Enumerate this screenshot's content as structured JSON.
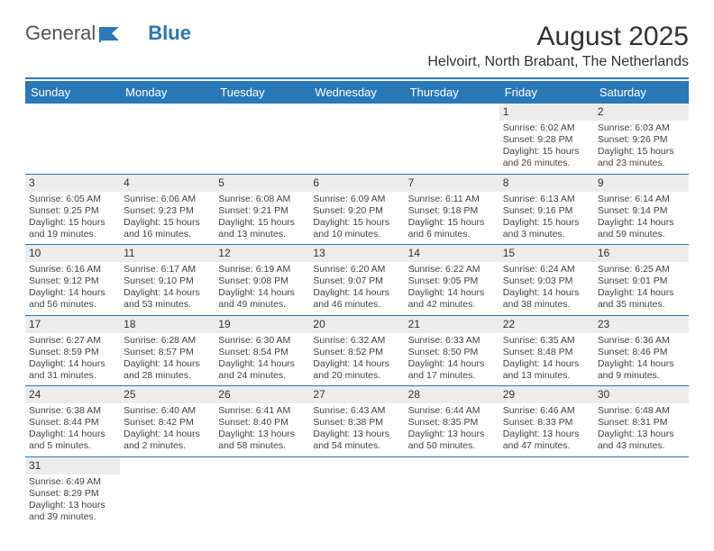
{
  "logo": {
    "text1": "General",
    "text2": "Blue"
  },
  "title": "August 2025",
  "location": "Helvoirt, North Brabant, The Netherlands",
  "colors": {
    "accent": "#2978b8",
    "dayStripe": "#ececec",
    "text": "#444444",
    "bg": "#ffffff"
  },
  "dayHeaders": [
    "Sunday",
    "Monday",
    "Tuesday",
    "Wednesday",
    "Thursday",
    "Friday",
    "Saturday"
  ],
  "weeks": [
    [
      null,
      null,
      null,
      null,
      null,
      {
        "n": "1",
        "sr": "6:02 AM",
        "ss": "9:28 PM",
        "dl": "15 hours and 26 minutes."
      },
      {
        "n": "2",
        "sr": "6:03 AM",
        "ss": "9:26 PM",
        "dl": "15 hours and 23 minutes."
      }
    ],
    [
      {
        "n": "3",
        "sr": "6:05 AM",
        "ss": "9:25 PM",
        "dl": "15 hours and 19 minutes."
      },
      {
        "n": "4",
        "sr": "6:06 AM",
        "ss": "9:23 PM",
        "dl": "15 hours and 16 minutes."
      },
      {
        "n": "5",
        "sr": "6:08 AM",
        "ss": "9:21 PM",
        "dl": "15 hours and 13 minutes."
      },
      {
        "n": "6",
        "sr": "6:09 AM",
        "ss": "9:20 PM",
        "dl": "15 hours and 10 minutes."
      },
      {
        "n": "7",
        "sr": "6:11 AM",
        "ss": "9:18 PM",
        "dl": "15 hours and 6 minutes."
      },
      {
        "n": "8",
        "sr": "6:13 AM",
        "ss": "9:16 PM",
        "dl": "15 hours and 3 minutes."
      },
      {
        "n": "9",
        "sr": "6:14 AM",
        "ss": "9:14 PM",
        "dl": "14 hours and 59 minutes."
      }
    ],
    [
      {
        "n": "10",
        "sr": "6:16 AM",
        "ss": "9:12 PM",
        "dl": "14 hours and 56 minutes."
      },
      {
        "n": "11",
        "sr": "6:17 AM",
        "ss": "9:10 PM",
        "dl": "14 hours and 53 minutes."
      },
      {
        "n": "12",
        "sr": "6:19 AM",
        "ss": "9:08 PM",
        "dl": "14 hours and 49 minutes."
      },
      {
        "n": "13",
        "sr": "6:20 AM",
        "ss": "9:07 PM",
        "dl": "14 hours and 46 minutes."
      },
      {
        "n": "14",
        "sr": "6:22 AM",
        "ss": "9:05 PM",
        "dl": "14 hours and 42 minutes."
      },
      {
        "n": "15",
        "sr": "6:24 AM",
        "ss": "9:03 PM",
        "dl": "14 hours and 38 minutes."
      },
      {
        "n": "16",
        "sr": "6:25 AM",
        "ss": "9:01 PM",
        "dl": "14 hours and 35 minutes."
      }
    ],
    [
      {
        "n": "17",
        "sr": "6:27 AM",
        "ss": "8:59 PM",
        "dl": "14 hours and 31 minutes."
      },
      {
        "n": "18",
        "sr": "6:28 AM",
        "ss": "8:57 PM",
        "dl": "14 hours and 28 minutes."
      },
      {
        "n": "19",
        "sr": "6:30 AM",
        "ss": "8:54 PM",
        "dl": "14 hours and 24 minutes."
      },
      {
        "n": "20",
        "sr": "6:32 AM",
        "ss": "8:52 PM",
        "dl": "14 hours and 20 minutes."
      },
      {
        "n": "21",
        "sr": "6:33 AM",
        "ss": "8:50 PM",
        "dl": "14 hours and 17 minutes."
      },
      {
        "n": "22",
        "sr": "6:35 AM",
        "ss": "8:48 PM",
        "dl": "14 hours and 13 minutes."
      },
      {
        "n": "23",
        "sr": "6:36 AM",
        "ss": "8:46 PM",
        "dl": "14 hours and 9 minutes."
      }
    ],
    [
      {
        "n": "24",
        "sr": "6:38 AM",
        "ss": "8:44 PM",
        "dl": "14 hours and 5 minutes."
      },
      {
        "n": "25",
        "sr": "6:40 AM",
        "ss": "8:42 PM",
        "dl": "14 hours and 2 minutes."
      },
      {
        "n": "26",
        "sr": "6:41 AM",
        "ss": "8:40 PM",
        "dl": "13 hours and 58 minutes."
      },
      {
        "n": "27",
        "sr": "6:43 AM",
        "ss": "8:38 PM",
        "dl": "13 hours and 54 minutes."
      },
      {
        "n": "28",
        "sr": "6:44 AM",
        "ss": "8:35 PM",
        "dl": "13 hours and 50 minutes."
      },
      {
        "n": "29",
        "sr": "6:46 AM",
        "ss": "8:33 PM",
        "dl": "13 hours and 47 minutes."
      },
      {
        "n": "30",
        "sr": "6:48 AM",
        "ss": "8:31 PM",
        "dl": "13 hours and 43 minutes."
      }
    ],
    [
      {
        "n": "31",
        "sr": "6:49 AM",
        "ss": "8:29 PM",
        "dl": "13 hours and 39 minutes."
      },
      null,
      null,
      null,
      null,
      null,
      null
    ]
  ],
  "labels": {
    "sunrise": "Sunrise: ",
    "sunset": "Sunset: ",
    "daylight": "Daylight: "
  }
}
